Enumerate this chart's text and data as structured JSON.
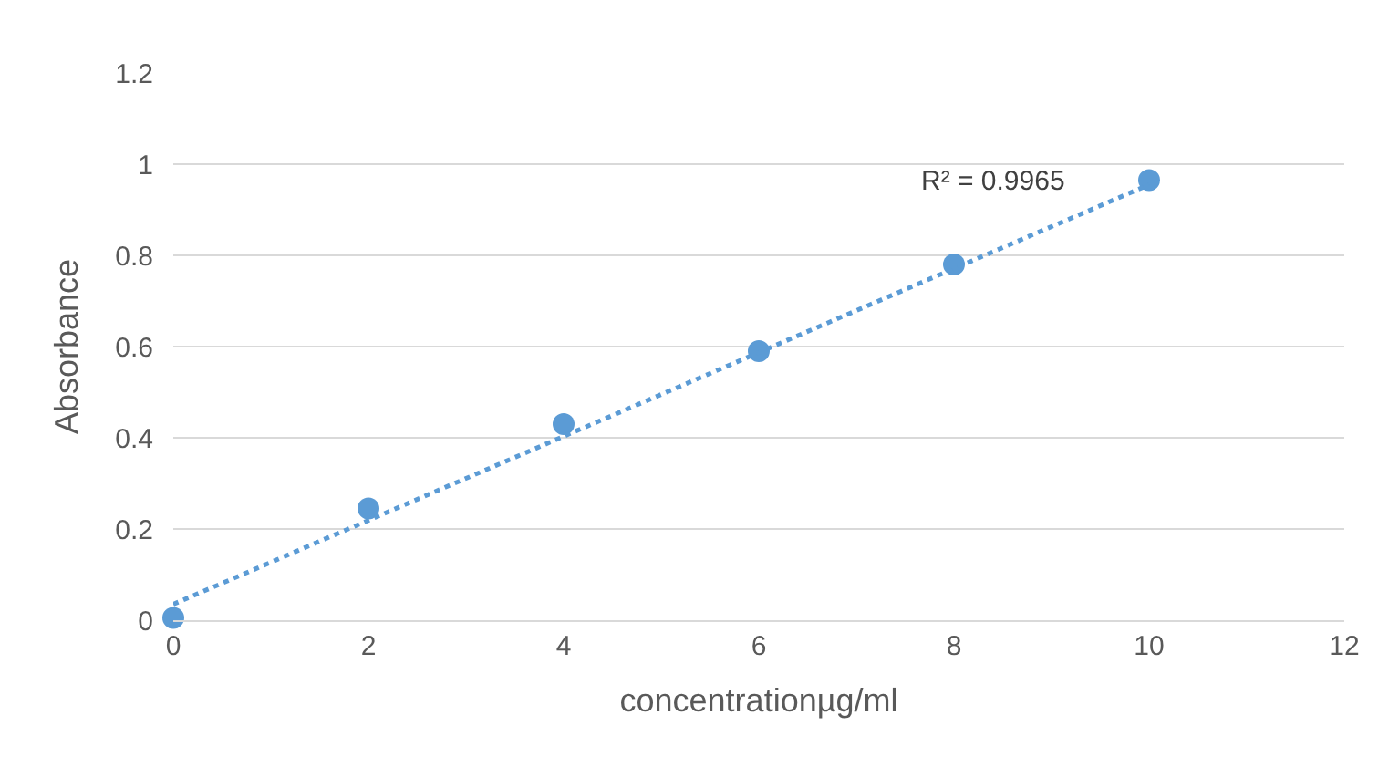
{
  "chart_data": {
    "type": "scatter",
    "xlabel": "concentrationµg/ml",
    "ylabel": "Absorbance",
    "xlim": [
      0,
      12
    ],
    "xticks": [
      0,
      2,
      4,
      6,
      8,
      10,
      12
    ],
    "ylim": [
      0,
      1.2
    ],
    "yticks": [
      0,
      0.2,
      0.4,
      0.6,
      0.8,
      1,
      1.2
    ],
    "grid": "y",
    "series": [
      {
        "color": "#5b9bd5",
        "marker": "circle",
        "x": [
          0,
          2,
          4,
          6,
          8,
          10
        ],
        "values": [
          0.005,
          0.245,
          0.43,
          0.59,
          0.78,
          0.965
        ]
      },
      {
        "type": "line",
        "color": "#5b9bd5",
        "marker": "none",
        "line_style": "dotted",
        "x": [
          0,
          10
        ],
        "values": [
          0.035,
          0.955
        ]
      }
    ],
    "annotations": [
      "R² = 0.9965"
    ]
  }
}
